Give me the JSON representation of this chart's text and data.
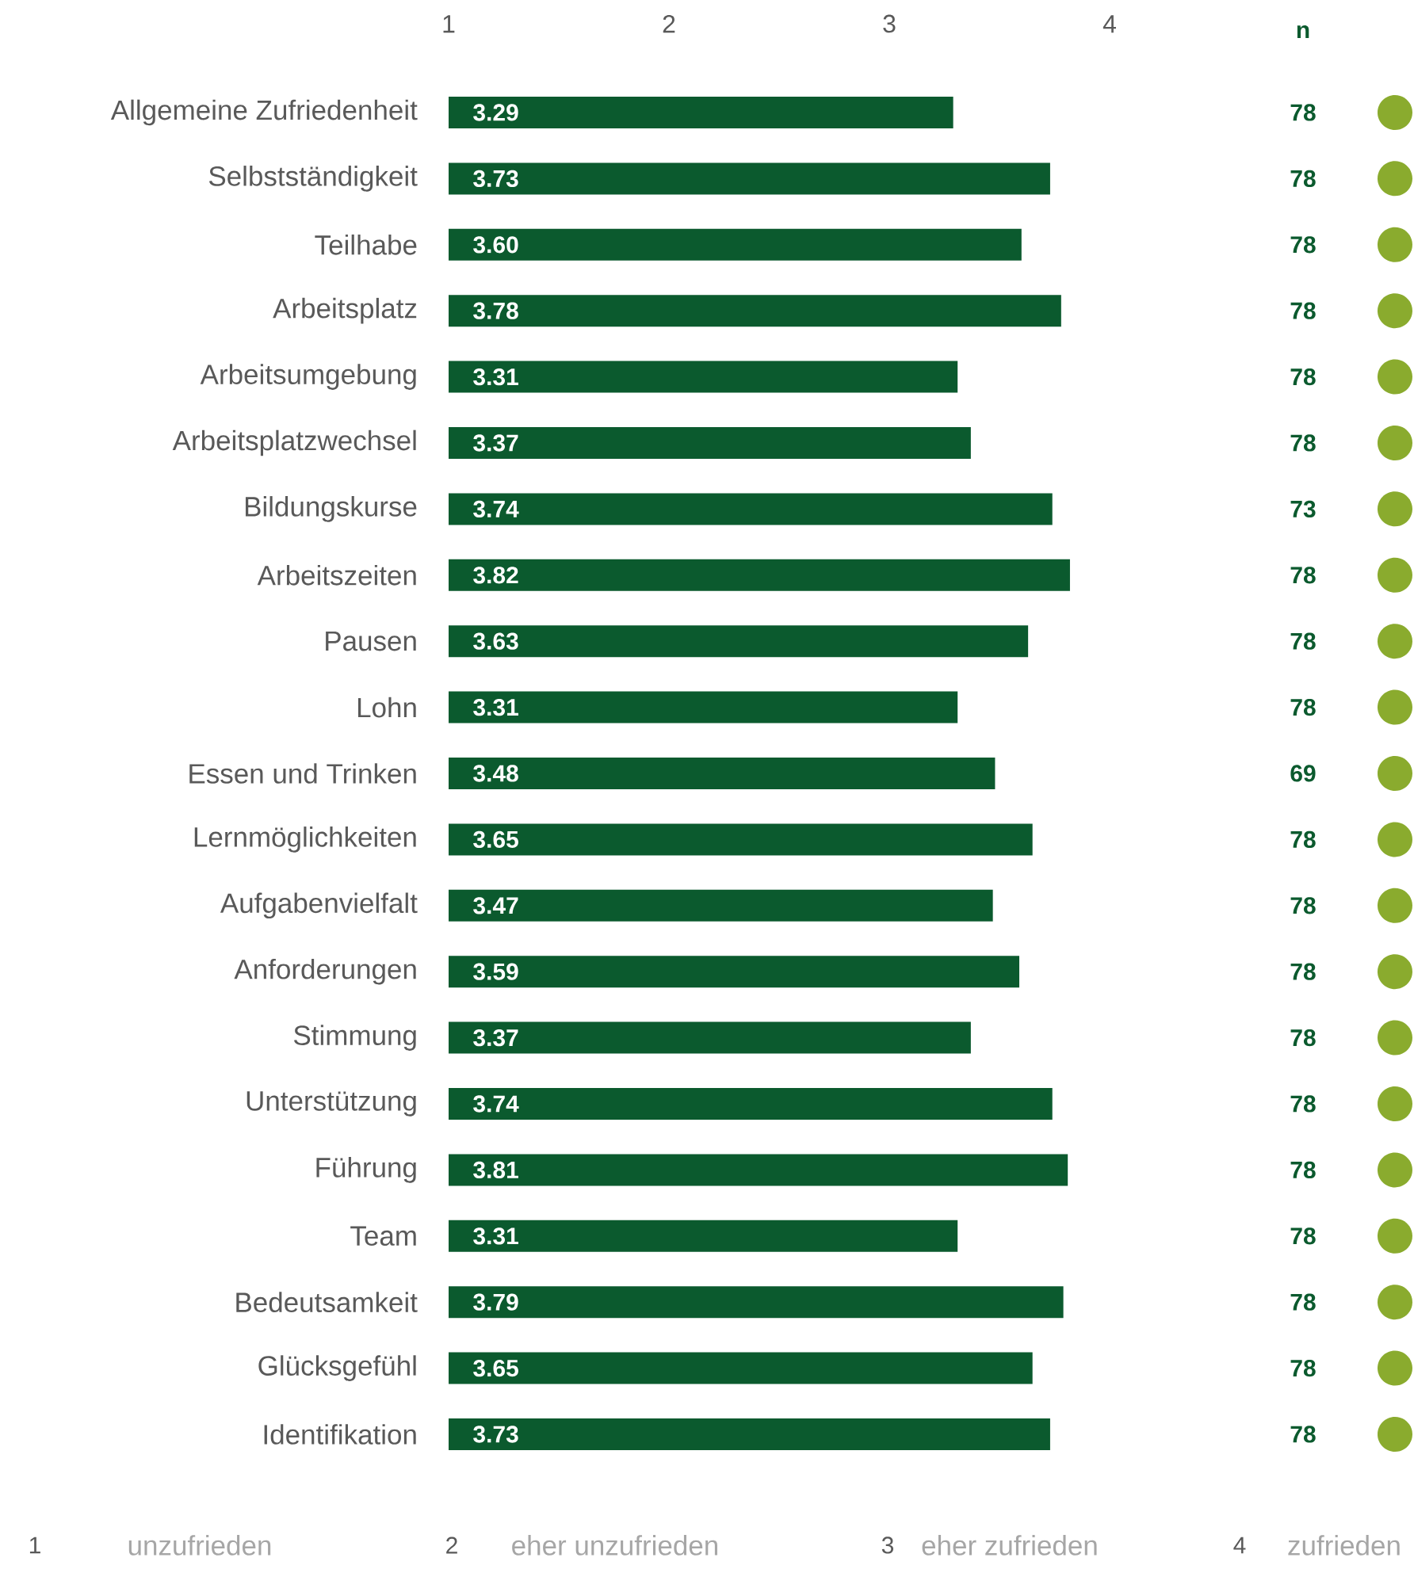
{
  "chart_data": {
    "type": "bar",
    "orientation": "horizontal",
    "categories": [
      "Allgemeine Zufriedenheit",
      "Selbstständigkeit",
      "Teilhabe",
      "Arbeitsplatz",
      "Arbeitsumgebung",
      "Arbeitsplatzwechsel",
      "Bildungskurse",
      "Arbeitszeiten",
      "Pausen",
      "Lohn",
      "Essen und Trinken",
      "Lernmöglichkeiten",
      "Aufgabenvielfalt",
      "Anforderungen",
      "Stimmung",
      "Unterstützung",
      "Führung",
      "Team",
      "Bedeutsamkeit",
      "Glücksgefühl",
      "Identifikation"
    ],
    "values": [
      3.29,
      3.73,
      3.6,
      3.78,
      3.31,
      3.37,
      3.74,
      3.82,
      3.63,
      3.31,
      3.48,
      3.65,
      3.47,
      3.59,
      3.37,
      3.74,
      3.81,
      3.31,
      3.79,
      3.65,
      3.73
    ],
    "value_labels": [
      "3.29",
      "3.73",
      "3.60",
      "3.78",
      "3.31",
      "3.37",
      "3.74",
      "3.82",
      "3.63",
      "3.31",
      "3.48",
      "3.65",
      "3.47",
      "3.59",
      "3.37",
      "3.74",
      "3.81",
      "3.31",
      "3.79",
      "3.65",
      "3.73"
    ],
    "color": "#0b5a2e",
    "xlim": [
      1,
      4
    ],
    "xticks": [
      1,
      2,
      3,
      4
    ],
    "grid": false,
    "annotations": [
      "n",
      "78",
      "78",
      "78",
      "78",
      "78",
      "78",
      "73",
      "78",
      "78",
      "78",
      "69",
      "78",
      "78",
      "78",
      "78",
      "78",
      "78",
      "78",
      "78",
      "78",
      "78",
      "1",
      "unzufrieden",
      "2",
      "eher unzufrieden",
      "3",
      "eher zufrieden",
      "4",
      "zufrieden"
    ]
  }
}
